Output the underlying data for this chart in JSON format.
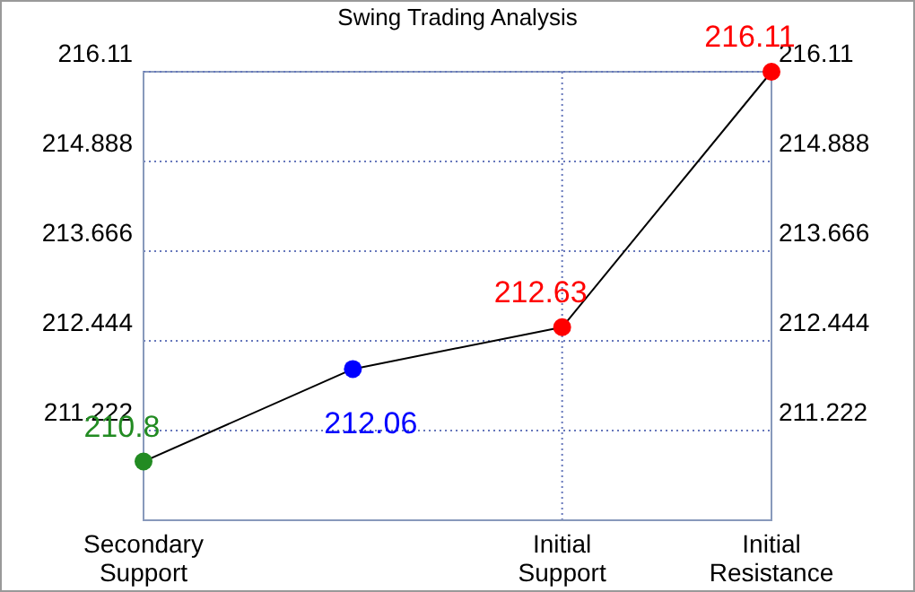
{
  "chart_data": {
    "type": "line",
    "title": "Swing Trading Analysis",
    "categories": [
      "Secondary Support",
      null,
      "Initial Support",
      "Initial Resistance"
    ],
    "ylim": [
      210,
      216.11
    ],
    "yticks": [
      211.222,
      212.444,
      213.666,
      214.888,
      216.11
    ],
    "y2lim": [
      210,
      216.11
    ],
    "y2ticks": [
      211.222,
      212.444,
      213.666,
      214.888,
      216.11
    ],
    "series": [
      {
        "color": "#000000",
        "colors": [
          "#228b22",
          "#0000ff",
          "#ff0000",
          "#ff0000"
        ],
        "values": [
          210.8,
          212.06,
          212.63,
          216.11
        ]
      }
    ],
    "data_labels": true,
    "grid": true,
    "marker": "circle",
    "line_style": "solid"
  }
}
